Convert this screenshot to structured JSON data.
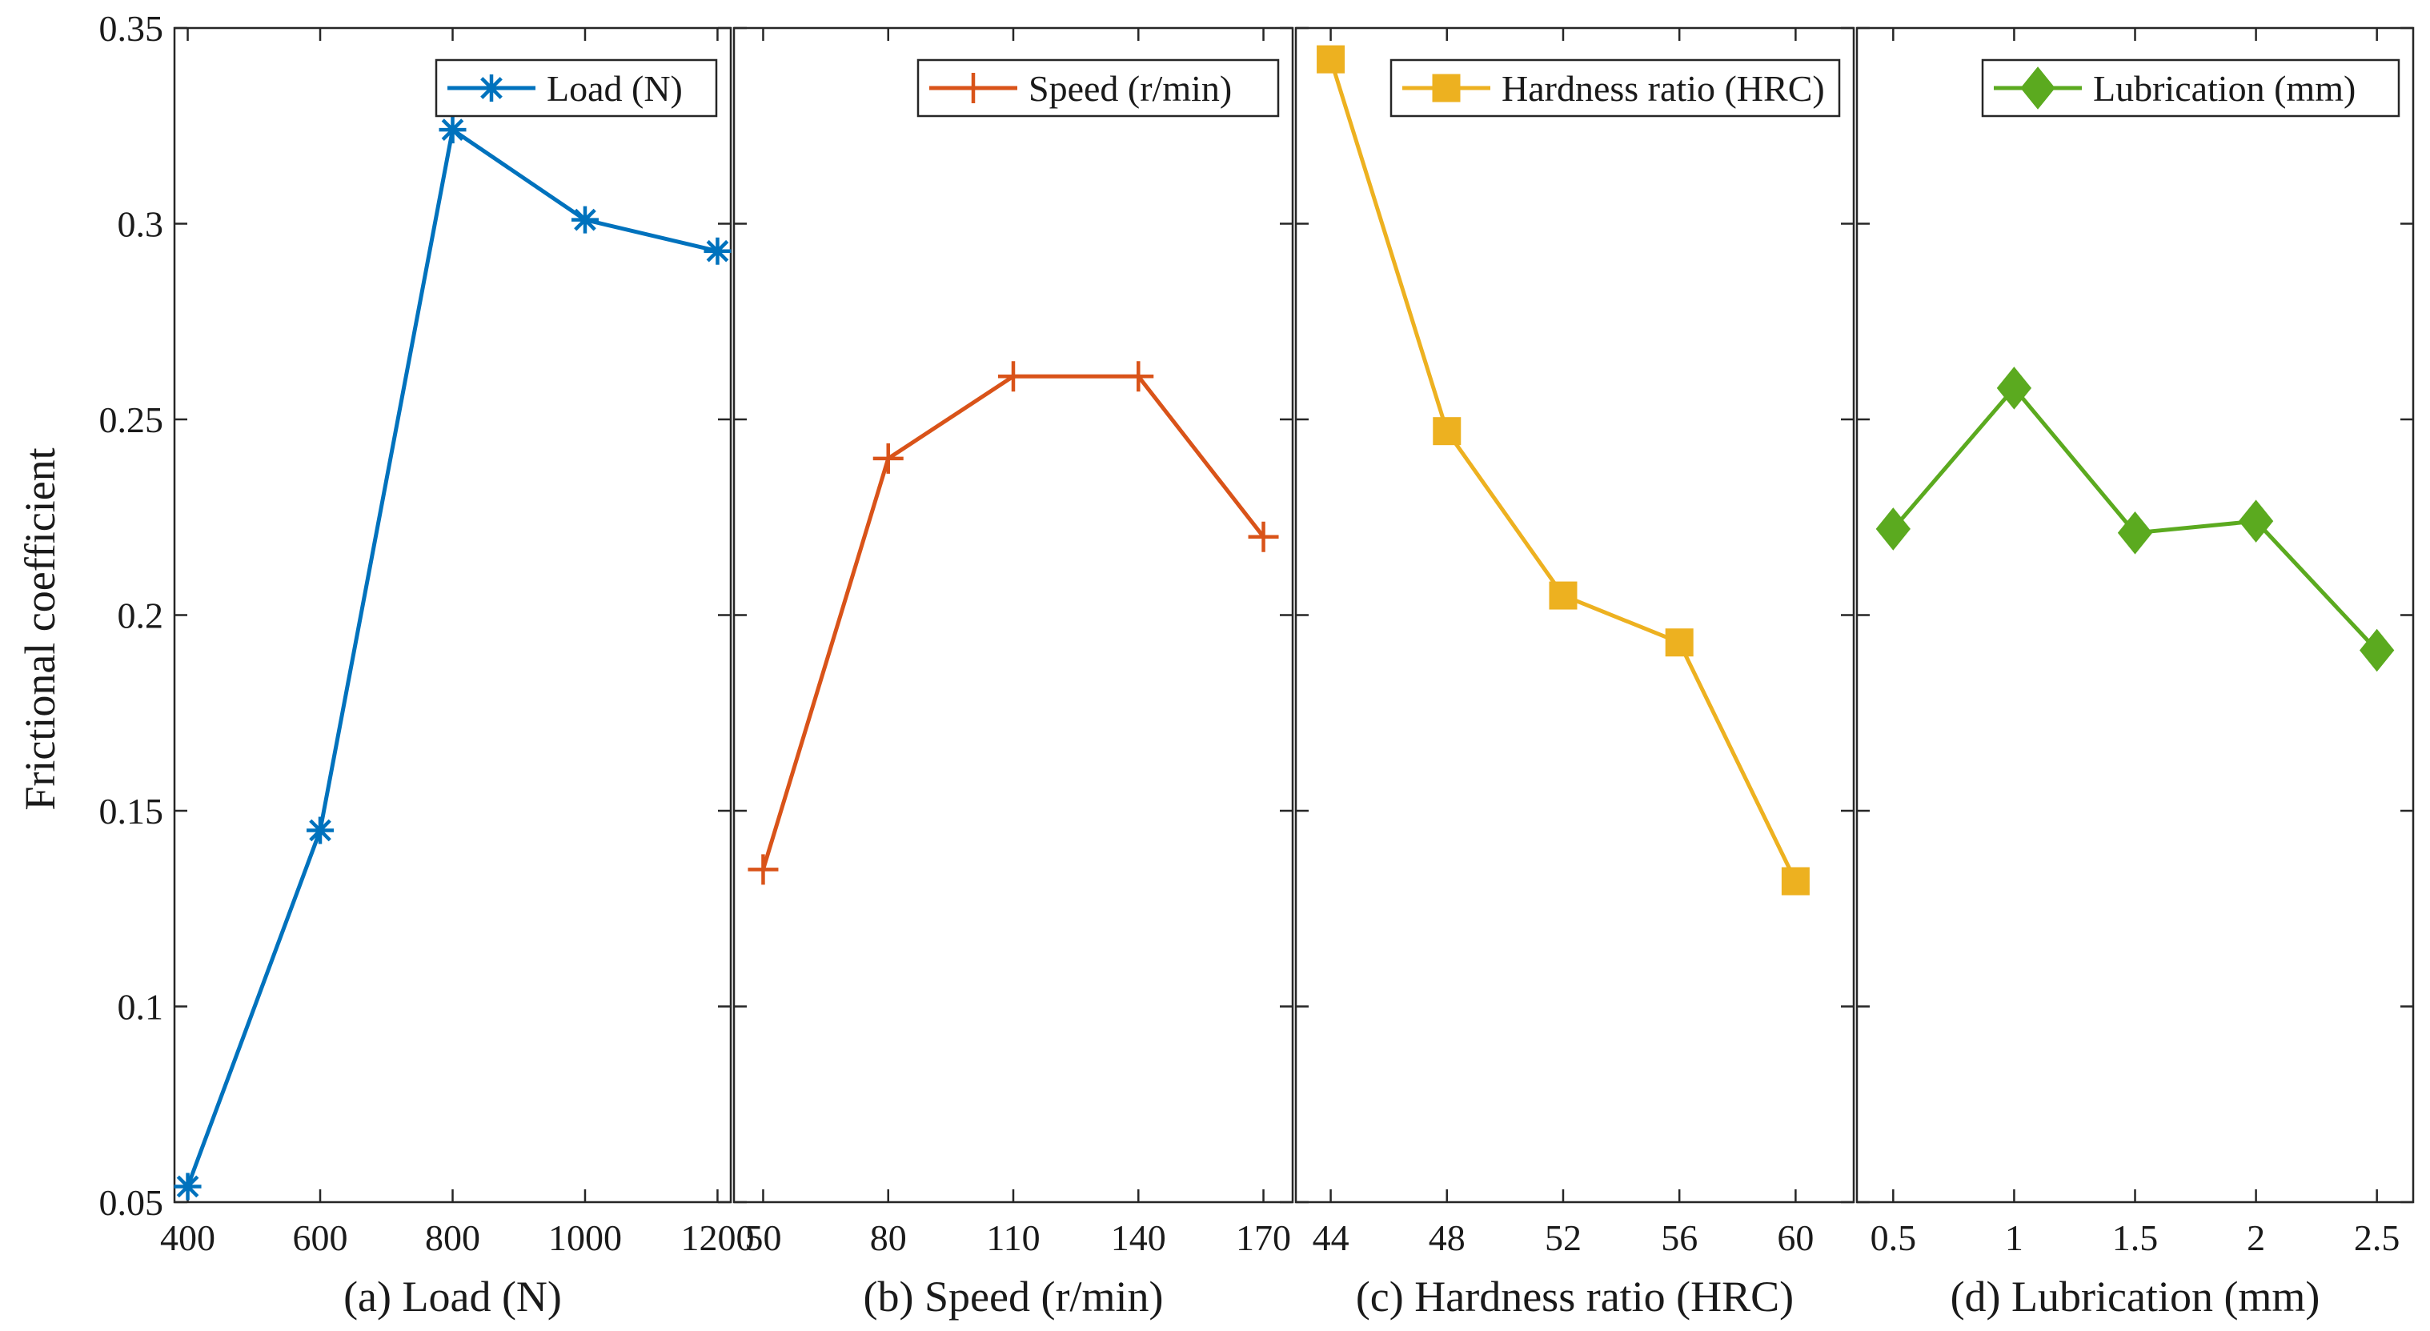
{
  "ylabel": "Frictional coefficient",
  "ylim": [
    0.05,
    0.35
  ],
  "yticks": [
    "0.05",
    "0.1",
    "0.15",
    "0.2",
    "0.25",
    "0.3",
    "0.35"
  ],
  "chart_data": [
    {
      "type": "line",
      "xlabel": "(a) Load (N)",
      "xlim": [
        380,
        1220
      ],
      "xticks": [
        400,
        600,
        800,
        1000,
        1200
      ],
      "xtick_labels": [
        "400",
        "600",
        "800",
        "1000",
        "1200"
      ],
      "series": [
        {
          "name": "Load (N)",
          "x": [
            400,
            600,
            800,
            1000,
            1200
          ],
          "values": [
            0.054,
            0.145,
            0.324,
            0.301,
            0.293
          ],
          "color": "#0072BD",
          "marker": "asterisk"
        }
      ],
      "legend": "top-right"
    },
    {
      "type": "line",
      "xlabel": "(b) Speed (r/min)",
      "xlim": [
        43,
        177
      ],
      "xticks": [
        50,
        80,
        110,
        140,
        170
      ],
      "xtick_labels": [
        "50",
        "80",
        "110",
        "140",
        "170"
      ],
      "series": [
        {
          "name": "Speed (r/min)",
          "x": [
            50,
            80,
            110,
            140,
            170
          ],
          "values": [
            0.135,
            0.24,
            0.261,
            0.261,
            0.22
          ],
          "color": "#D95319",
          "marker": "plus"
        }
      ],
      "legend": "top-right"
    },
    {
      "type": "line",
      "xlabel": "(c) Hardness ratio (HRC)",
      "xlim": [
        42.8,
        62
      ],
      "xticks": [
        44,
        48,
        52,
        56,
        60
      ],
      "xtick_labels": [
        "44",
        "48",
        "52",
        "56",
        "60"
      ],
      "series": [
        {
          "name": "Hardness ratio (HRC)",
          "x": [
            44,
            48,
            52,
            56,
            60
          ],
          "values": [
            0.342,
            0.247,
            0.205,
            0.193,
            0.132
          ],
          "color": "#EDB120",
          "marker": "square"
        }
      ],
      "legend": "top-right"
    },
    {
      "type": "line",
      "xlabel": "(d) Lubrication (mm)",
      "xlim": [
        0.35,
        2.65
      ],
      "xticks": [
        0.5,
        1,
        1.5,
        2,
        2.5
      ],
      "xtick_labels": [
        "0.5",
        "1",
        "1.5",
        "2",
        "2.5"
      ],
      "series": [
        {
          "name": "Lubrication (mm)",
          "x": [
            0.5,
            1,
            1.5,
            2,
            2.5
          ],
          "values": [
            0.222,
            0.258,
            0.221,
            0.224,
            0.191
          ],
          "color": "#5BAA1F",
          "marker": "diamond"
        }
      ],
      "legend": "top-right"
    }
  ]
}
